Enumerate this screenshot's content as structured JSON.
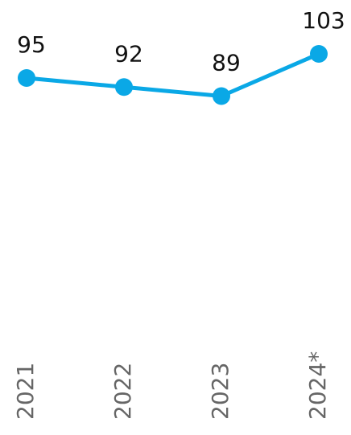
{
  "chart_data": {
    "type": "line",
    "categories": [
      "2021",
      "2022",
      "2023",
      "2024*"
    ],
    "series": [
      {
        "name": null,
        "color": "#0aa8e6",
        "values": [
          95,
          92,
          89,
          103
        ]
      }
    ]
  }
}
